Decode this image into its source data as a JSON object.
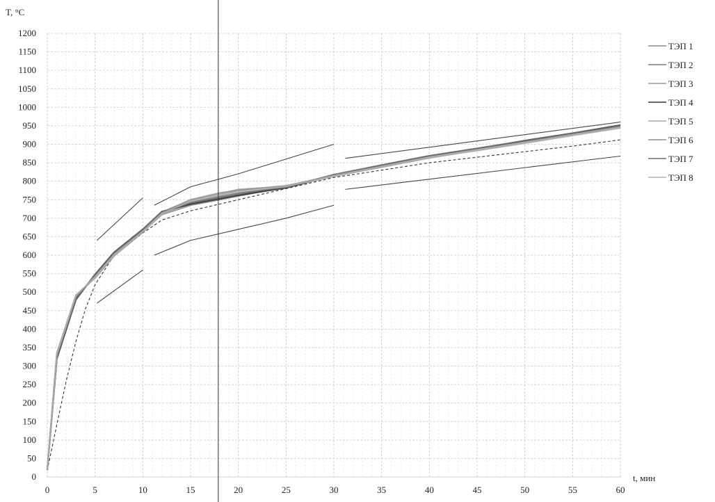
{
  "chart_data": {
    "type": "line",
    "ylabel": "T, °C",
    "xlabel": "t, мин",
    "xlim": [
      0,
      60
    ],
    "ylim": [
      0,
      1200
    ],
    "x_ticks": [
      0,
      5,
      10,
      15,
      20,
      25,
      30,
      35,
      40,
      45,
      50,
      55,
      60
    ],
    "y_ticks": [
      0,
      50,
      100,
      150,
      200,
      250,
      300,
      350,
      400,
      450,
      500,
      550,
      600,
      650,
      700,
      750,
      800,
      850,
      900,
      950,
      1000,
      1050,
      1100,
      1150,
      1200
    ],
    "grid": true,
    "legend_position": "right",
    "vertical_marker_x": 17.9,
    "series": [
      {
        "name": "ТЭП 1",
        "color": "#8a8a8a",
        "x": [
          0,
          1,
          3,
          5,
          7,
          10,
          12,
          15,
          18,
          20,
          25,
          30,
          35,
          40,
          45,
          50,
          55,
          60
        ],
        "y": [
          20,
          330,
          490,
          540,
          600,
          665,
          710,
          735,
          750,
          760,
          785,
          815,
          840,
          865,
          885,
          905,
          925,
          945
        ]
      },
      {
        "name": "ТЭП 2",
        "color": "#7a7a7a",
        "x": [
          0,
          1,
          3,
          5,
          7,
          10,
          12,
          15,
          18,
          20,
          25,
          30,
          35,
          40,
          45,
          50,
          55,
          60
        ],
        "y": [
          20,
          325,
          485,
          545,
          605,
          668,
          715,
          740,
          755,
          765,
          785,
          817,
          842,
          867,
          887,
          907,
          928,
          948
        ]
      },
      {
        "name": "ТЭП 3",
        "color": "#999999",
        "x": [
          0,
          1,
          3,
          5,
          7,
          10,
          12,
          15,
          18,
          20,
          25,
          30,
          35,
          40,
          45,
          50,
          55,
          60
        ],
        "y": [
          20,
          335,
          492,
          538,
          598,
          662,
          712,
          745,
          760,
          775,
          788,
          814,
          838,
          863,
          884,
          904,
          926,
          946
        ]
      },
      {
        "name": "ТЭП 4",
        "color": "#333333",
        "x": [
          0,
          1,
          3,
          5,
          7,
          10,
          12,
          15,
          18,
          20,
          25,
          30,
          35,
          40,
          45,
          50,
          55,
          60
        ],
        "y": [
          20,
          320,
          480,
          548,
          608,
          670,
          718,
          738,
          752,
          762,
          782,
          816,
          843,
          868,
          888,
          910,
          930,
          952
        ]
      },
      {
        "name": "ТЭП 5",
        "color": "#aaaaaa",
        "x": [
          0,
          1,
          3,
          5,
          7,
          10,
          12,
          15,
          18,
          20,
          25,
          30,
          35,
          40,
          45,
          50,
          55,
          60
        ],
        "y": [
          20,
          328,
          488,
          542,
          602,
          666,
          714,
          748,
          765,
          778,
          786,
          813,
          839,
          864,
          883,
          903,
          924,
          944
        ]
      },
      {
        "name": "ТЭП 6",
        "color": "#8f8f8f",
        "x": [
          0,
          1,
          3,
          5,
          7,
          10,
          12,
          15,
          18,
          20,
          25,
          30,
          35,
          40,
          45,
          50,
          55,
          60
        ],
        "y": [
          20,
          332,
          486,
          544,
          604,
          667,
          716,
          750,
          768,
          776,
          787,
          816,
          841,
          866,
          886,
          906,
          927,
          947
        ]
      },
      {
        "name": "ТЭП 7",
        "color": "#6f6f6f",
        "x": [
          0,
          1,
          3,
          5,
          7,
          10,
          12,
          15,
          18,
          20,
          25,
          30,
          35,
          40,
          45,
          50,
          55,
          60
        ],
        "y": [
          20,
          327,
          484,
          546,
          606,
          669,
          717,
          742,
          757,
          768,
          784,
          818,
          844,
          869,
          889,
          909,
          929,
          950
        ]
      },
      {
        "name": "ТЭП 8",
        "color": "#b0b0b0",
        "x": [
          0,
          1,
          3,
          5,
          7,
          10,
          12,
          15,
          18,
          20,
          25,
          30,
          35,
          40,
          45,
          50,
          55,
          60
        ],
        "y": [
          20,
          331,
          491,
          541,
          601,
          664,
          713,
          746,
          762,
          772,
          786,
          815,
          840,
          865,
          885,
          905,
          926,
          946
        ]
      }
    ],
    "reference_lines": [
      {
        "style": "dashed",
        "color": "#333333",
        "x": [
          0,
          1,
          2,
          3,
          4,
          5,
          7,
          10,
          12,
          15,
          20,
          25,
          30,
          35,
          40,
          45,
          50,
          55,
          60
        ],
        "y": [
          18,
          142,
          262,
          367,
          455,
          520,
          600,
          660,
          695,
          720,
          750,
          780,
          810,
          830,
          850,
          865,
          880,
          895,
          912
        ]
      },
      {
        "style": "solid",
        "color": "#444444",
        "x": [
          5.2,
          10
        ],
        "y": [
          640,
          755
        ]
      },
      {
        "style": "solid",
        "color": "#444444",
        "x": [
          5.2,
          10
        ],
        "y": [
          470,
          560
        ]
      },
      {
        "style": "solid",
        "color": "#444444",
        "x": [
          11.2,
          15,
          20,
          25,
          30
        ],
        "y": [
          735,
          785,
          820,
          860,
          900
        ]
      },
      {
        "style": "solid",
        "color": "#444444",
        "x": [
          11.2,
          15,
          20,
          25,
          30
        ],
        "y": [
          600,
          640,
          670,
          700,
          735
        ]
      },
      {
        "style": "solid",
        "color": "#444444",
        "x": [
          31.2,
          60
        ],
        "y": [
          862,
          960
        ]
      },
      {
        "style": "solid",
        "color": "#444444",
        "x": [
          31.2,
          60
        ],
        "y": [
          778,
          868
        ]
      }
    ]
  }
}
